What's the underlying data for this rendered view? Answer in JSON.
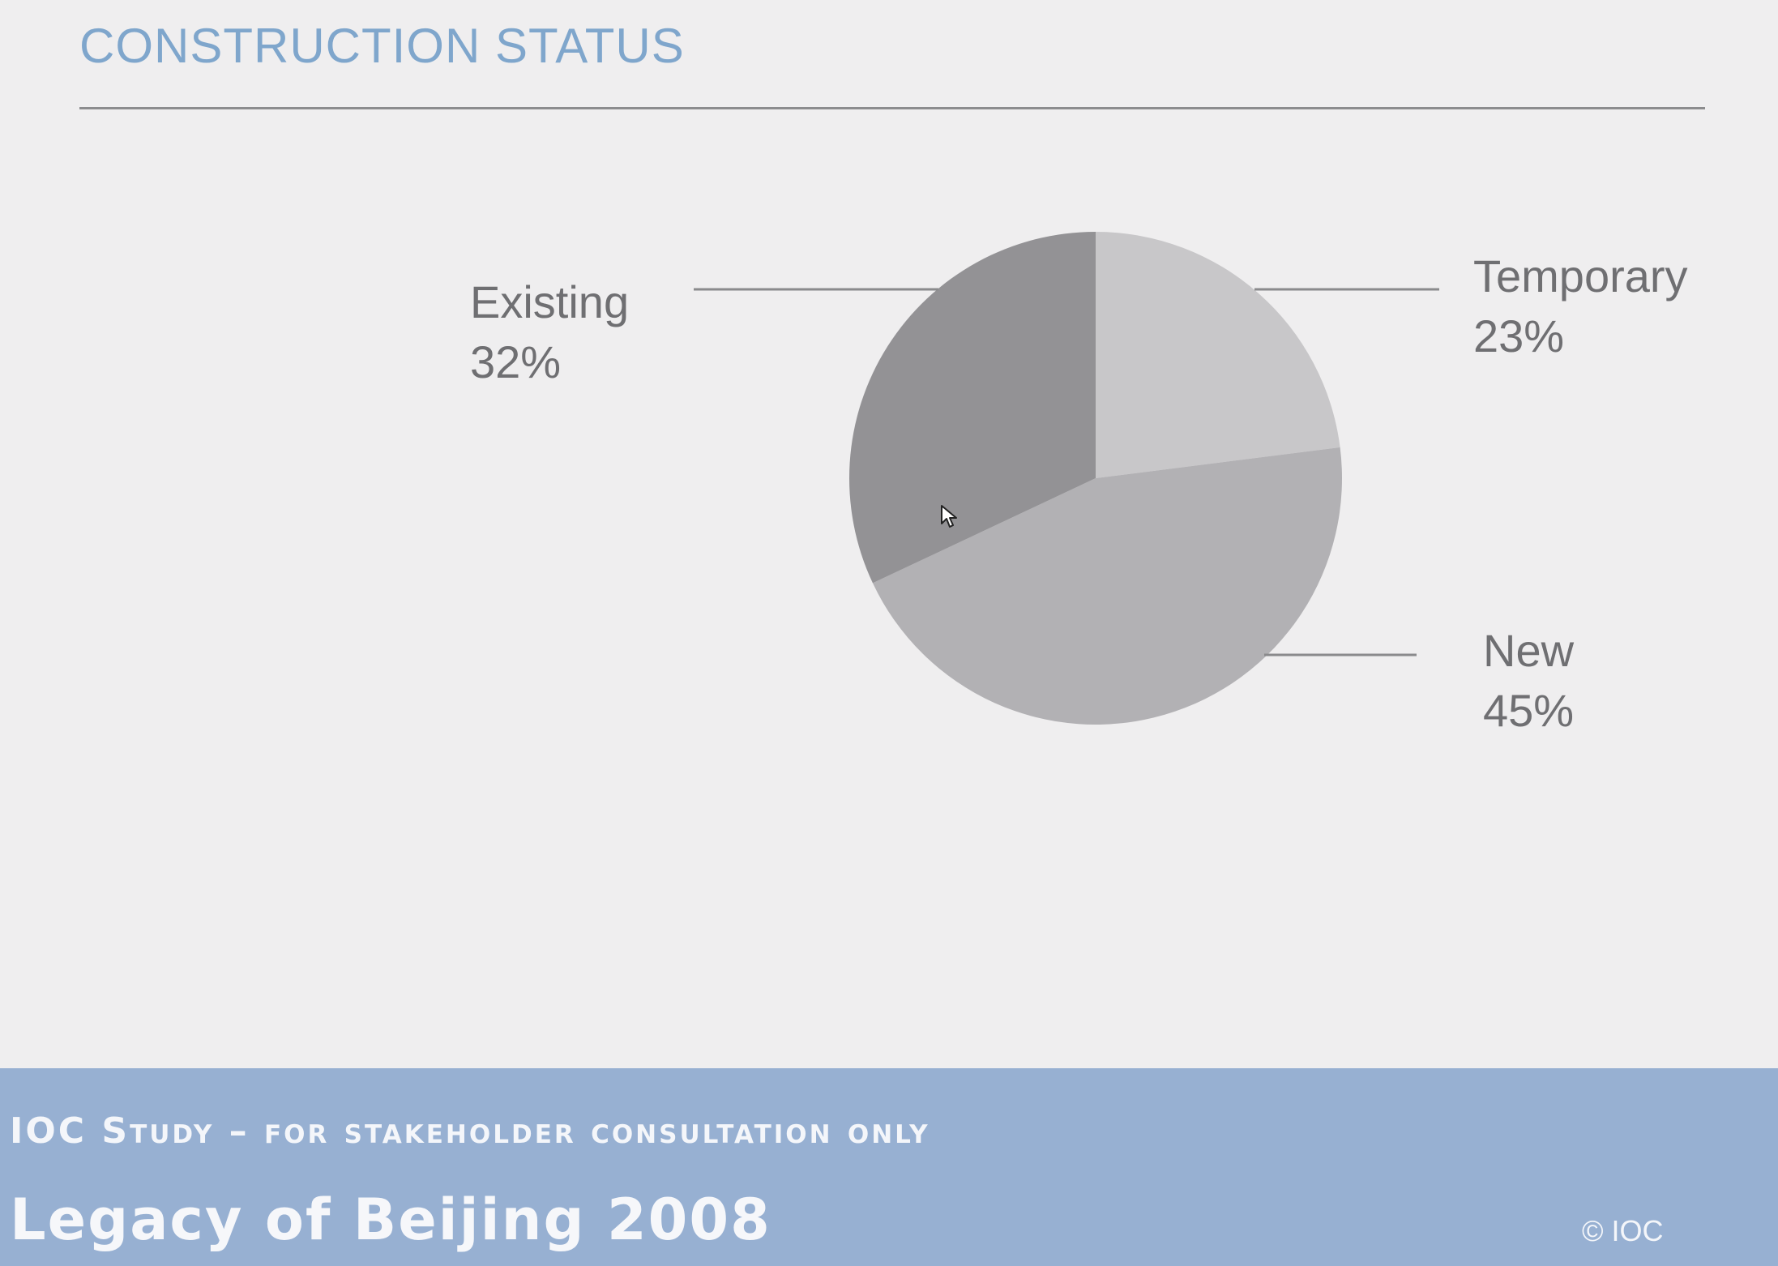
{
  "header": {
    "title": "CONSTRUCTION STATUS"
  },
  "chart_data": {
    "type": "pie",
    "title": "CONSTRUCTION STATUS",
    "slices": [
      {
        "label": "Temporary",
        "value": 23,
        "value_label": "23%",
        "color": "#c8c7c9"
      },
      {
        "label": "New",
        "value": 45,
        "value_label": "45%",
        "color": "#b2b1b4"
      },
      {
        "label": "Existing",
        "value": 32,
        "value_label": "32%",
        "color": "#939295"
      }
    ],
    "start": "12 o'clock",
    "direction": "clockwise",
    "legend": "none",
    "labels": "outside with leader lines"
  },
  "footer": {
    "subtitle": "IOC Study – for stakeholder consultation only",
    "main_title": "Legacy of Beijing 2008",
    "copyright": "© IOC"
  },
  "colors": {
    "background": "#efeeef",
    "title": "#7fa6cc",
    "footer_band": "#97b0d2",
    "label_text": "#6f6f72"
  }
}
